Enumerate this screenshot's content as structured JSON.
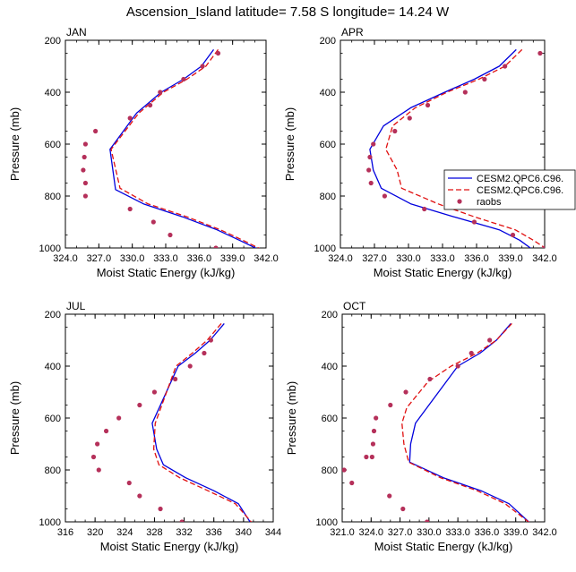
{
  "title": "Ascension_Island  latitude= 7.58 S longitude= 14.24 W",
  "legend": {
    "entries": [
      {
        "label": "CESM2.QPC6.C96.",
        "style": "solid",
        "color": "#0000dd"
      },
      {
        "label": "CESM2.QPC6.C96.",
        "style": "dashed",
        "color": "#e01010"
      },
      {
        "label": "raobs",
        "style": "marker",
        "color": "#b5305a"
      }
    ]
  },
  "chart_data": [
    {
      "type": "line",
      "panel": "JAN",
      "xlabel": "Moist Static Energy (kJ/kg)",
      "ylabel": "Pressure (mb)",
      "xlim": [
        324,
        342
      ],
      "ylim": [
        1000,
        200
      ],
      "xticks": [
        324,
        327,
        330,
        333,
        336,
        339,
        342
      ],
      "xtick_labels": [
        "324.0",
        "327.0",
        "330.0",
        "333.0",
        "336.0",
        "339.0",
        "342.0"
      ],
      "yticks": [
        200,
        400,
        600,
        800,
        1000
      ],
      "ytick_labels": [
        "200",
        "400",
        "600",
        "800",
        "1000"
      ],
      "series": [
        {
          "name": "CESM2.QPC6.C96.",
          "style": "solid",
          "color": "#0000dd",
          "x": [
            337.3,
            336.2,
            334.6,
            332.6,
            330.4,
            328.0,
            328.5,
            331.0,
            334.5,
            337.6,
            339.6,
            341.3
          ],
          "y": [
            236,
            300,
            350,
            400,
            480,
            620,
            775,
            830,
            880,
            930,
            970,
            1005
          ]
        },
        {
          "name": "CESM2.QPC6.C96.",
          "style": "dashed",
          "color": "#e01010",
          "x": [
            337.7,
            336.6,
            334.9,
            332.8,
            330.6,
            328.1,
            328.9,
            331.4,
            334.9,
            337.9,
            339.9,
            341.7
          ],
          "y": [
            236,
            300,
            350,
            400,
            480,
            620,
            770,
            830,
            880,
            930,
            970,
            1008
          ]
        },
        {
          "name": "raobs",
          "style": "marker",
          "color": "#b5305a",
          "x": [
            337.7,
            336.3,
            334.6,
            332.5,
            331.6,
            329.8,
            326.7,
            325.8,
            325.7,
            325.6,
            325.8,
            325.8,
            329.8,
            331.9,
            333.4,
            337.5
          ],
          "y": [
            250,
            300,
            350,
            400,
            450,
            500,
            550,
            600,
            650,
            700,
            750,
            800,
            850,
            900,
            950,
            1000
          ]
        }
      ]
    },
    {
      "type": "line",
      "panel": "APR",
      "xlabel": "Moist Static Energy (kJ/kg)",
      "ylabel": "Pressure (mb)",
      "xlim": [
        324,
        342
      ],
      "ylim": [
        1000,
        200
      ],
      "xticks": [
        324,
        327,
        330,
        333,
        336,
        339,
        342
      ],
      "xtick_labels": [
        "324.0",
        "327.0",
        "330.0",
        "333.0",
        "336.0",
        "339.0",
        "342.0"
      ],
      "yticks": [
        200,
        400,
        600,
        800,
        1000
      ],
      "ytick_labels": [
        "200",
        "400",
        "600",
        "800",
        "1000"
      ],
      "series": [
        {
          "name": "CESM2.QPC6.C96.",
          "style": "solid",
          "color": "#0000dd",
          "x": [
            339.5,
            338.0,
            335.8,
            333.2,
            330.2,
            327.8,
            326.6,
            326.9,
            327.6,
            330.2,
            334.0,
            338.0,
            339.8,
            340.9
          ],
          "y": [
            236,
            300,
            350,
            400,
            460,
            530,
            620,
            700,
            770,
            830,
            880,
            930,
            970,
            1005
          ]
        },
        {
          "name": "CESM2.QPC6.C96.",
          "style": "dashed",
          "color": "#e01010",
          "x": [
            340.0,
            338.5,
            336.2,
            333.4,
            330.6,
            328.6,
            328.0,
            329.0,
            329.4,
            332.6,
            335.8,
            339.4,
            341.0,
            342.3
          ],
          "y": [
            236,
            300,
            350,
            400,
            460,
            530,
            620,
            700,
            770,
            830,
            880,
            930,
            970,
            1008
          ]
        },
        {
          "name": "raobs",
          "style": "marker",
          "color": "#b5305a",
          "x": [
            341.6,
            338.5,
            336.7,
            335.0,
            331.7,
            330.1,
            328.8,
            326.9,
            326.6,
            326.5,
            326.7,
            327.9,
            331.4,
            335.8,
            339.2,
            342.0
          ],
          "y": [
            250,
            300,
            350,
            400,
            450,
            500,
            550,
            600,
            650,
            700,
            750,
            800,
            850,
            900,
            950,
            1000
          ]
        }
      ]
    },
    {
      "type": "line",
      "panel": "JUL",
      "xlabel": "Moist Static Energy (kJ/kg)",
      "ylabel": "Pressure (mb)",
      "xlim": [
        316,
        344
      ],
      "ylim": [
        1000,
        200
      ],
      "xticks": [
        316,
        320,
        324,
        328,
        332,
        336,
        340,
        344
      ],
      "xtick_labels": [
        "316",
        "320",
        "324",
        "328",
        "332",
        "336",
        "340",
        "344"
      ],
      "yticks": [
        200,
        400,
        600,
        800,
        1000
      ],
      "ytick_labels": [
        "200",
        "400",
        "600",
        "800",
        "1000"
      ],
      "series": [
        {
          "name": "CESM2.QPC6.C96.",
          "style": "solid",
          "color": "#0000dd",
          "x": [
            337.4,
            335.5,
            333.5,
            331.2,
            327.7,
            328.3,
            329.2,
            332.2,
            336.0,
            339.3,
            341.0
          ],
          "y": [
            236,
            300,
            350,
            400,
            620,
            720,
            780,
            830,
            880,
            930,
            1005
          ]
        },
        {
          "name": "CESM2.QPC6.C96.",
          "style": "dashed",
          "color": "#e01010",
          "x": [
            337.0,
            335.1,
            333.1,
            330.9,
            328.1,
            327.9,
            328.6,
            331.4,
            335.2,
            338.9,
            341.2
          ],
          "y": [
            236,
            300,
            350,
            400,
            620,
            720,
            780,
            830,
            880,
            930,
            1005
          ]
        },
        {
          "name": "raobs",
          "style": "marker",
          "color": "#b5305a",
          "x": [
            335.6,
            334.7,
            332.8,
            330.8,
            328.0,
            326.0,
            323.2,
            321.5,
            320.3,
            319.8,
            320.5,
            324.6,
            326.0,
            328.8,
            331.7
          ],
          "y": [
            300,
            350,
            400,
            450,
            500,
            550,
            600,
            650,
            700,
            750,
            800,
            850,
            900,
            950,
            1000
          ]
        }
      ]
    },
    {
      "type": "line",
      "panel": "OCT",
      "xlabel": "Moist Static Energy (kJ/kg)",
      "ylabel": "Pressure (mb)",
      "xlim": [
        321,
        342
      ],
      "ylim": [
        1000,
        200
      ],
      "xticks": [
        321,
        324,
        327,
        330,
        333,
        336,
        339,
        342
      ],
      "xtick_labels": [
        "321.0",
        "324.0",
        "327.0",
        "330.0",
        "333.0",
        "336.0",
        "339.0",
        "342.0"
      ],
      "yticks": [
        200,
        400,
        600,
        800,
        1000
      ],
      "ytick_labels": [
        "200",
        "400",
        "600",
        "800",
        "1000"
      ],
      "series": [
        {
          "name": "CESM2.QPC6.C96.",
          "style": "solid",
          "color": "#0000dd",
          "x": [
            338.5,
            337.0,
            335.3,
            333.0,
            330.6,
            328.6,
            328.1,
            328.0,
            331.5,
            335.4,
            338.3,
            340.5
          ],
          "y": [
            236,
            300,
            350,
            400,
            520,
            620,
            700,
            770,
            830,
            880,
            930,
            1005
          ]
        },
        {
          "name": "CESM2.QPC6.C96.",
          "style": "dashed",
          "color": "#e01010",
          "x": [
            338.6,
            337.0,
            335.0,
            332.3,
            329.9,
            327.7,
            327.2,
            327.4,
            327.9,
            331.2,
            335.0,
            337.9,
            340.5
          ],
          "y": [
            236,
            300,
            350,
            400,
            460,
            560,
            620,
            700,
            770,
            830,
            880,
            930,
            1005
          ]
        },
        {
          "name": "raobs",
          "style": "marker",
          "color": "#b5305a",
          "x": [
            336.3,
            334.4,
            333.0,
            330.1,
            327.6,
            326.0,
            324.5,
            324.3,
            324.2,
            324.1,
            323.5,
            321.2,
            322.0,
            325.9,
            327.3,
            329.8
          ],
          "y": [
            300,
            350,
            400,
            450,
            500,
            550,
            600,
            650,
            700,
            750,
            750,
            800,
            850,
            900,
            950,
            1000
          ]
        }
      ]
    }
  ]
}
